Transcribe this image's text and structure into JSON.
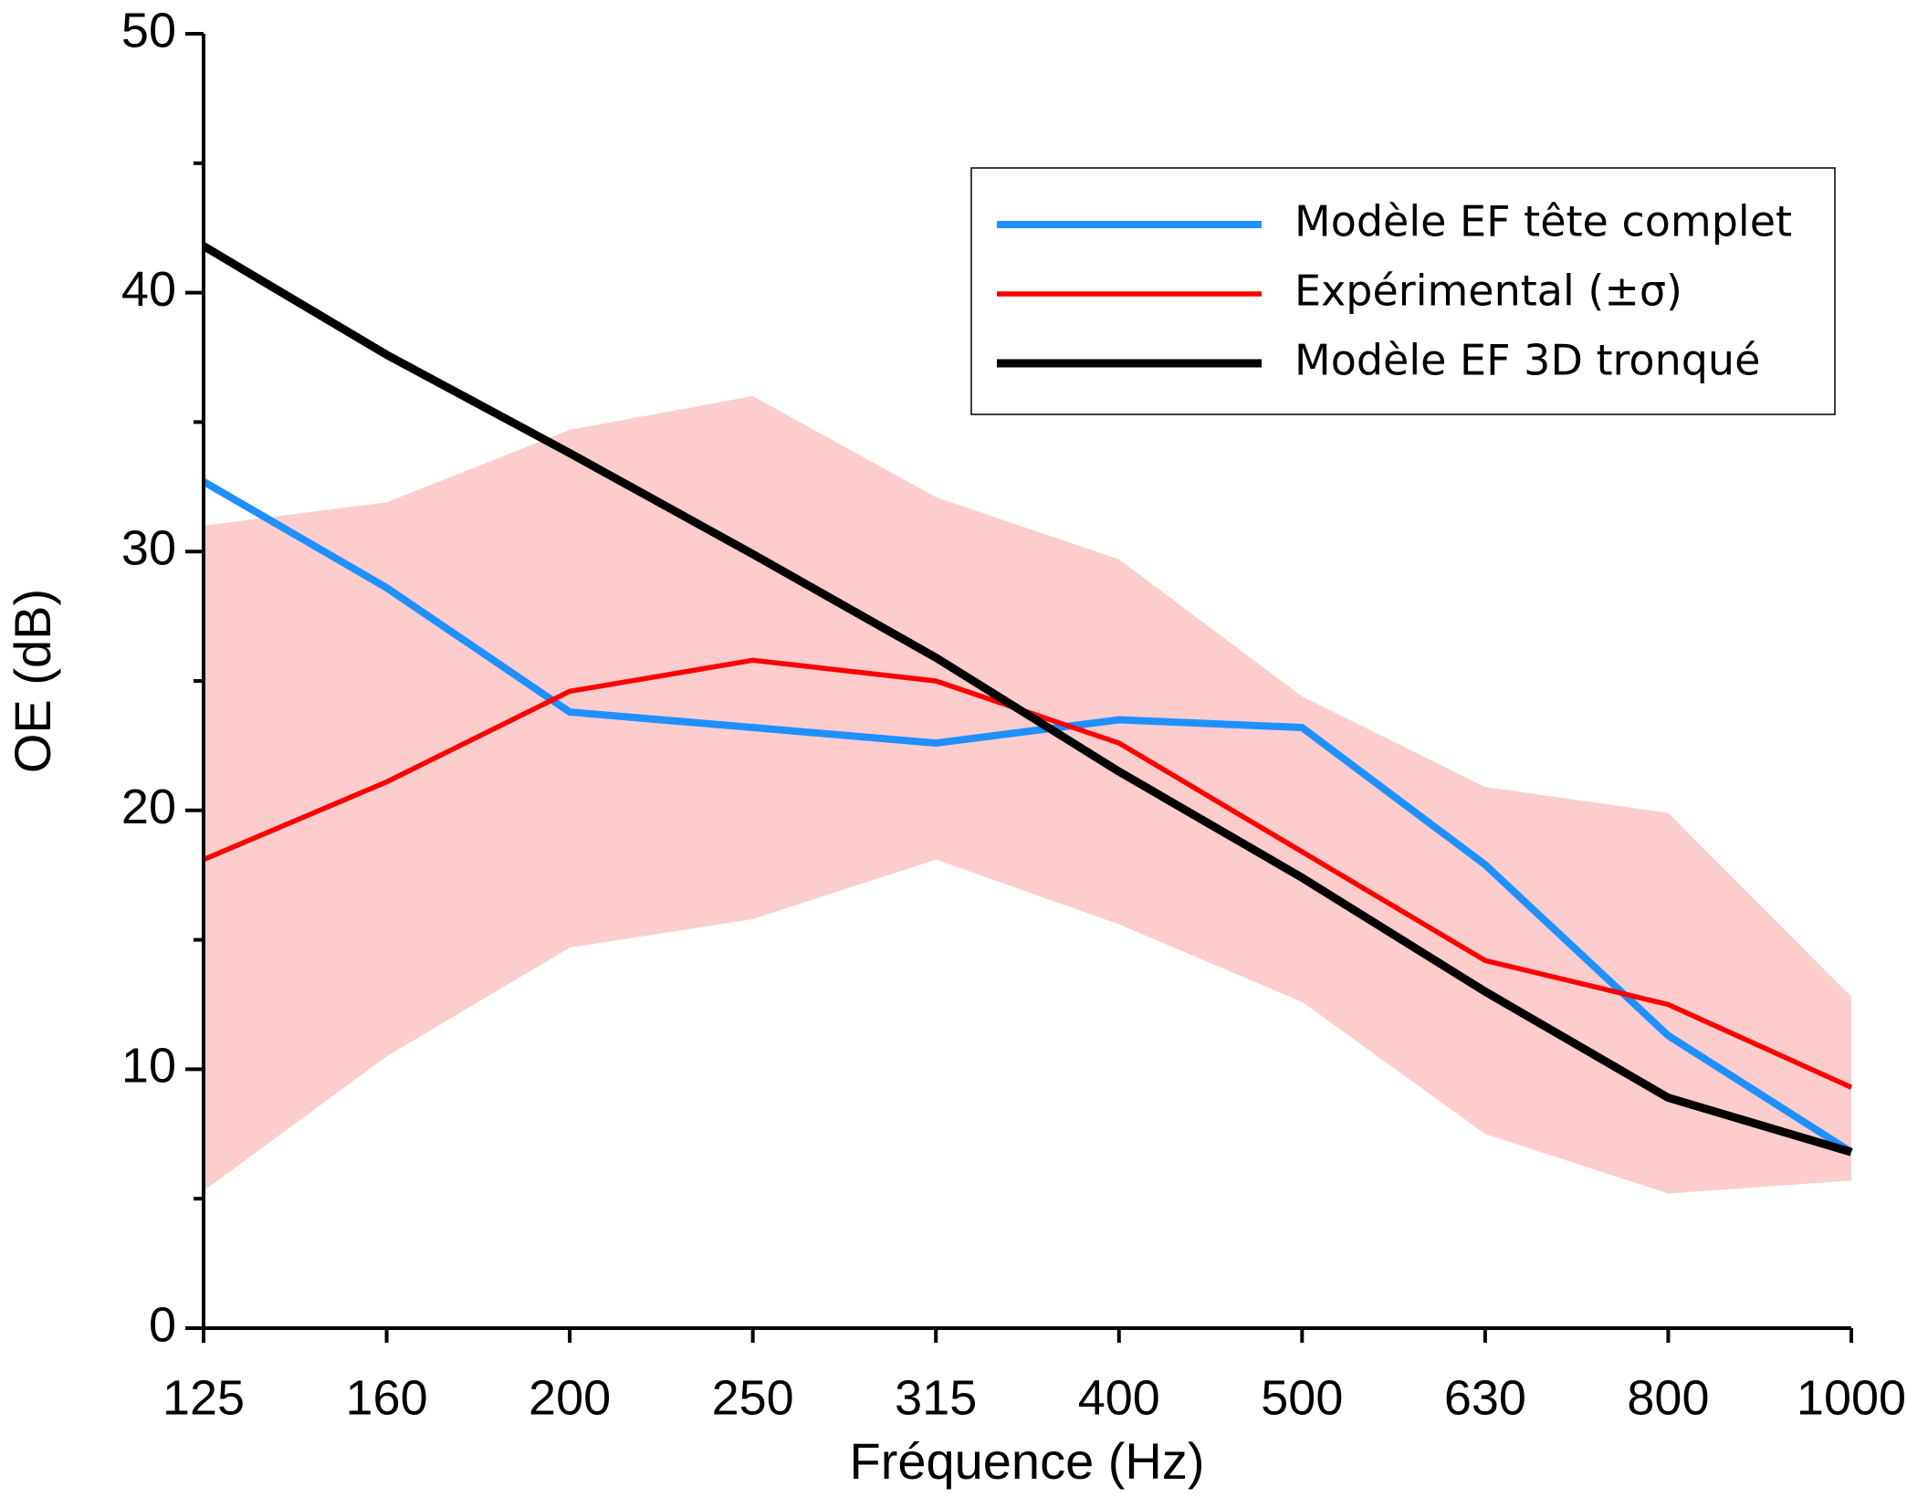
{
  "chart_data": {
    "type": "line",
    "x_label": "Fréquence (Hz)",
    "y_label": "OE (dB)",
    "categories": [
      "125",
      "160",
      "200",
      "250",
      "315",
      "400",
      "500",
      "630",
      "800",
      "1000"
    ],
    "ylim": [
      0,
      50
    ],
    "yticks": [
      0,
      10,
      20,
      30,
      40,
      50
    ],
    "y_minor_ticks": [
      5,
      15,
      25,
      35,
      45
    ],
    "legend": "top-right",
    "series": [
      {
        "name": "Modèle EF tête complet",
        "color": "#1e90ff",
        "values": [
          32.7,
          28.6,
          23.8,
          23.2,
          22.6,
          23.5,
          23.2,
          17.9,
          11.3,
          6.8
        ]
      },
      {
        "name": "Expérimental (±σ)",
        "color": "#ff0000",
        "band_color": "#fdcccc",
        "values": [
          18.1,
          21.1,
          24.6,
          25.8,
          25.0,
          22.6,
          18.4,
          14.2,
          12.5,
          9.3
        ],
        "band_upper": [
          31.0,
          31.9,
          34.7,
          36.0,
          32.1,
          29.7,
          24.4,
          20.9,
          19.9,
          12.8
        ],
        "band_lower": [
          5.3,
          10.5,
          14.7,
          15.8,
          18.1,
          15.6,
          12.6,
          7.5,
          5.2,
          5.7
        ]
      },
      {
        "name": "Modèle EF 3D tronqué",
        "color": "#000000",
        "values": [
          41.8,
          37.6,
          33.8,
          29.9,
          25.9,
          21.5,
          17.4,
          13.0,
          8.9,
          6.8
        ]
      }
    ]
  }
}
